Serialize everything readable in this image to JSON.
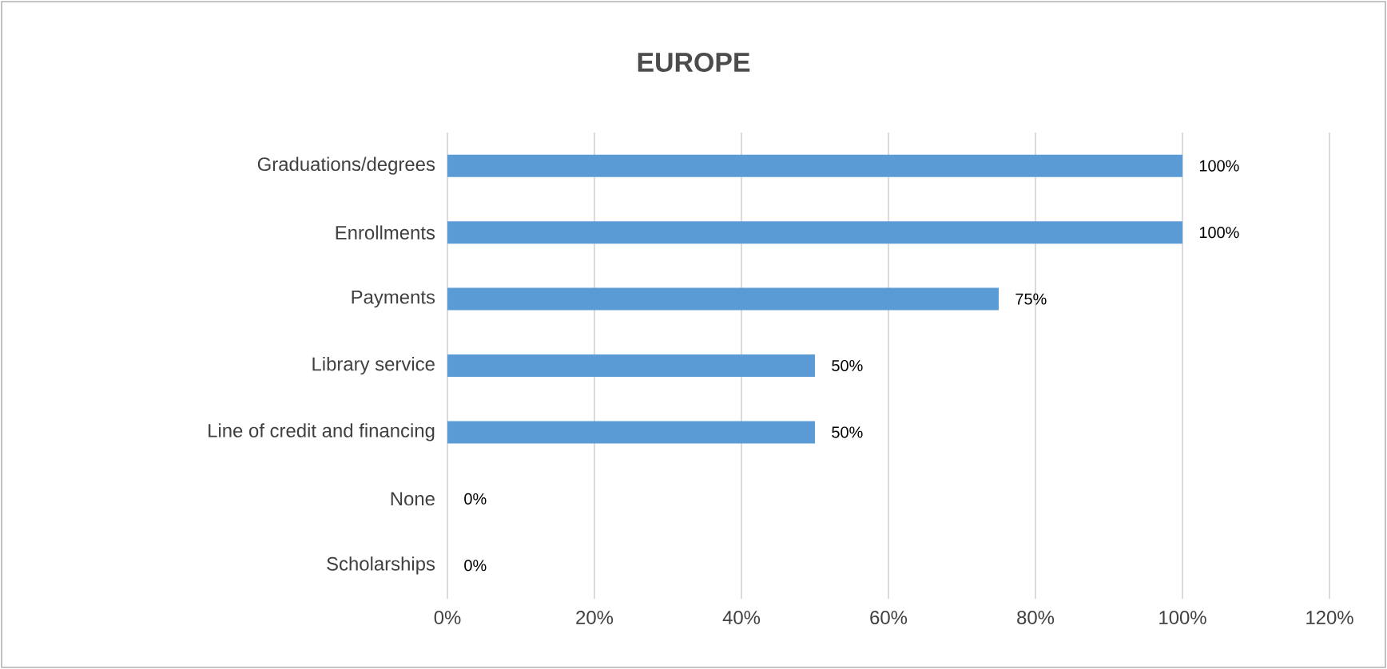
{
  "chart_data": {
    "type": "bar",
    "orientation": "horizontal",
    "title": "EUROPE",
    "categories": [
      "Graduations/degrees",
      "Enrollments",
      "Payments",
      "Library service",
      "Line of credit and financing",
      "None",
      "Scholarships"
    ],
    "values": [
      100,
      100,
      75,
      50,
      50,
      0,
      0
    ],
    "value_labels": [
      "100%",
      "100%",
      "75%",
      "50%",
      "50%",
      "0%",
      "0%"
    ],
    "color": "#5b9bd5",
    "xlim": [
      0,
      120
    ],
    "xticks": [
      {
        "value": 0,
        "label": "0%"
      },
      {
        "value": 20,
        "label": "20%"
      },
      {
        "value": 40,
        "label": "40%"
      },
      {
        "value": 60,
        "label": "60%"
      },
      {
        "value": 80,
        "label": "80%"
      },
      {
        "value": 100,
        "label": "100%"
      },
      {
        "value": 120,
        "label": "120%"
      }
    ],
    "grid": "x"
  }
}
